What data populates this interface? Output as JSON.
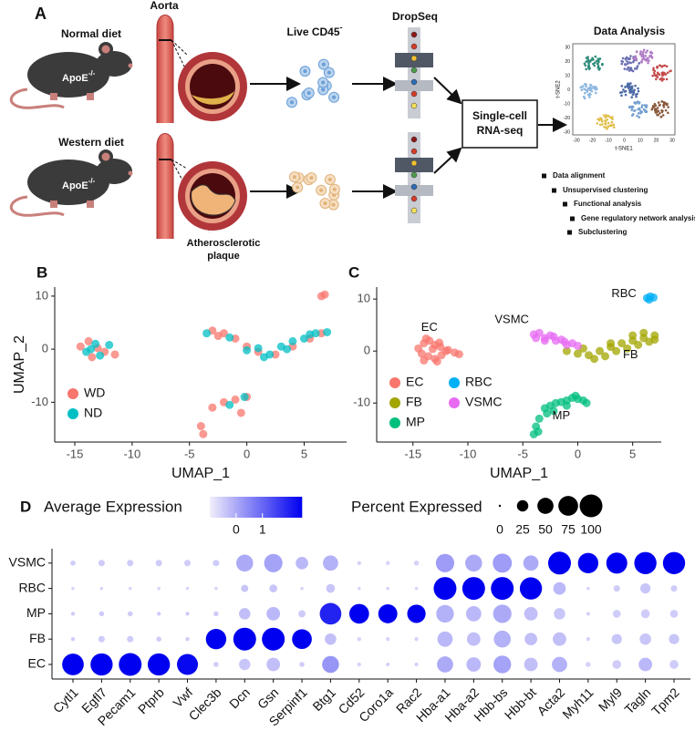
{
  "panel_a": {
    "label": "A",
    "aorta": "Aorta",
    "normal_diet": "Normal diet",
    "western_diet": "Western diet",
    "apoe": "ApoE",
    "apoe_sup": "-/-",
    "cells": "Live CD45",
    "cells_sup": "-",
    "dropseq": "DropSeq",
    "rna_box": [
      "Single-cell",
      "RNA-seq"
    ],
    "plaque": [
      "Atherosclerotic",
      "plaque"
    ],
    "data_analysis": "Data Analysis",
    "tsne_x": "t-SNE1",
    "tsne_y": "t-SNE2",
    "tsne_xticks": [
      "-30",
      "-20",
      "-10",
      "0",
      "10",
      "20",
      "30"
    ],
    "tsne_yticks": [
      "30",
      "20",
      "10",
      "0",
      "-10",
      "-20",
      "-30"
    ],
    "steps": [
      "Data alignment",
      "Unsupervised clustering",
      "Functional analysis",
      "Gene regulatory network analysis",
      "Subclustering"
    ]
  },
  "chart_data": [
    {
      "type": "scatter",
      "panel": "B",
      "xlabel": "UMAP_1",
      "ylabel": "UMAP_2",
      "xlim": [
        -16.75,
        8.7
      ],
      "ylim": [
        -17.5,
        11.7
      ],
      "xticks": [
        -15,
        -10,
        -5,
        0,
        5
      ],
      "yticks": [
        10,
        0,
        -10
      ],
      "legend": "lower left",
      "series": [
        {
          "name": "WD",
          "color": "#f8766d",
          "x": [
            -14.5,
            -13.8,
            -13,
            -12.4,
            -11.5,
            -3,
            -2.5,
            -2,
            -1,
            0,
            1,
            2.5,
            4,
            5.5,
            6.5,
            6.8,
            6.5,
            -3,
            -2,
            -1,
            0,
            -0.5,
            -4,
            -3.8,
            -13.5
          ],
          "y": [
            0.5,
            1.5,
            0.2,
            -0.5,
            -1,
            3.5,
            2.5,
            3,
            2,
            0.5,
            -0.5,
            -1,
            0.5,
            2,
            3,
            10.3,
            10,
            -11,
            -10,
            -9.5,
            -9,
            -12,
            -14.5,
            -16,
            -1.5
          ]
        },
        {
          "name": "ND",
          "color": "#00bfc4",
          "x": [
            -14,
            -13.2,
            -12.8,
            -12,
            -3.5,
            -1.5,
            0,
            1,
            2,
            3,
            4,
            5,
            6,
            7,
            1.5,
            3.5,
            5.5,
            -1.5,
            -0.2,
            -13.6
          ],
          "y": [
            -0.5,
            1,
            -1.2,
            0.8,
            3,
            2.2,
            -0.2,
            0.2,
            -1,
            0.5,
            1.5,
            2,
            3,
            3.2,
            -1.5,
            0,
            2.8,
            -10.5,
            -9,
            0
          ]
        }
      ]
    },
    {
      "type": "scatter",
      "panel": "C",
      "xlabel": "UMAP_1",
      "xlim": [
        -18.3,
        7.6
      ],
      "ylim": [
        -17.5,
        12.3
      ],
      "xticks": [
        -15,
        -10,
        -5,
        0,
        5
      ],
      "yticks": [
        10,
        0,
        -10
      ],
      "legend": "lower left",
      "series": [
        {
          "name": "EC",
          "color": "#f8766d",
          "x": [
            -14.5,
            -14,
            -13.5,
            -13,
            -12.5,
            -12,
            -14.2,
            -13.6,
            -13,
            -12.4,
            -11.8,
            -14,
            -13.2,
            -12.6,
            -11.2,
            -10.8,
            -13.8,
            -12.8
          ],
          "y": [
            0.5,
            1.5,
            2,
            1.2,
            0.8,
            0,
            -0.5,
            -1,
            -1.5,
            -0.8,
            0.2,
            -1.8,
            0.4,
            1.6,
            -0.3,
            -0.6,
            2.4,
            -2
          ]
        },
        {
          "name": "FB",
          "color": "#a3a500",
          "x": [
            -1,
            0,
            1,
            2,
            3,
            4,
            5,
            6,
            7,
            1.5,
            2.5,
            3.5,
            4.5,
            5.5,
            6.5,
            0.5,
            3,
            5,
            6,
            7
          ],
          "y": [
            0,
            -0.5,
            -0.8,
            0,
            0.8,
            1.5,
            2,
            2.5,
            3,
            -1.5,
            -1,
            0,
            0.5,
            1.2,
            1.8,
            0.5,
            1.5,
            3,
            3.5,
            2.2
          ]
        },
        {
          "name": "MP",
          "color": "#00bf7d",
          "x": [
            -3,
            -2.5,
            -2,
            -1.5,
            -1,
            -0.5,
            0,
            0.5,
            -2.8,
            -2.2,
            -1,
            -0.2,
            -3.5,
            -3.8,
            -4,
            -3.6,
            0.8
          ],
          "y": [
            -11,
            -10.5,
            -10,
            -9.8,
            -9.5,
            -9,
            -9.2,
            -9.5,
            -12,
            -11.5,
            -10.5,
            -8.6,
            -13,
            -14.5,
            -16,
            -15.5,
            -10
          ]
        },
        {
          "name": "RBC",
          "color": "#00b0f6",
          "x": [
            6.3,
            6.6,
            6.9,
            6.5
          ],
          "y": [
            10.2,
            10.5,
            10.3,
            9.9
          ]
        },
        {
          "name": "VSMC",
          "color": "#e76bf3",
          "x": [
            -4,
            -3.5,
            -3,
            -2.5,
            -2,
            -1.5,
            -1,
            -0.5,
            -3.8,
            -3,
            -2.2,
            -1.2,
            0
          ],
          "y": [
            3.2,
            3.5,
            2.5,
            3,
            2,
            2.2,
            1.2,
            1.5,
            2.5,
            2,
            2.8,
            1.8,
            1
          ]
        }
      ]
    },
    {
      "type": "dotplot",
      "panel": "D",
      "color_title": "Average Expression",
      "size_title": "Percent Expressed",
      "colorlim": [
        -1,
        2.5
      ],
      "colorticks": [
        0,
        1
      ],
      "low_color": "#f1eefa",
      "high_color": "#0000f0",
      "size_ticks": [
        0,
        25,
        50,
        75,
        100
      ],
      "genes": [
        "Cytl1",
        "Egfl7",
        "Pecam1",
        "Ptprb",
        "Vwf",
        "Clec3b",
        "Dcn",
        "Gsn",
        "Serpinf1",
        "Btg1",
        "Cd52",
        "Coro1a",
        "Rac2",
        "Hba-a1",
        "Hba-a2",
        "Hbb-bs",
        "Hbb-bt",
        "Acta2",
        "Myh11",
        "Myl9",
        "Tagln",
        "Tpm2"
      ],
      "groups": [
        "EC",
        "FB",
        "MP",
        "RBC",
        "VSMC"
      ],
      "expression": [
        [
          2.5,
          2.5,
          2.5,
          2.5,
          2.4,
          -0.5,
          -0.4,
          -0.3,
          -0.5,
          0.3,
          -0.6,
          -0.6,
          -0.6,
          0,
          -0.2,
          0.1,
          -0.3,
          -0.1,
          -0.6,
          -0.5,
          -0.2,
          -0.5
        ],
        [
          -0.5,
          -0.5,
          -0.5,
          -0.5,
          -0.5,
          2.5,
          2.5,
          2.5,
          2.5,
          -0.3,
          -0.6,
          -0.6,
          -0.6,
          -0.2,
          -0.3,
          -0.1,
          -0.3,
          -0.3,
          -0.6,
          -0.4,
          -0.4,
          -0.4
        ],
        [
          -0.5,
          -0.5,
          -0.5,
          -0.5,
          -0.5,
          -0.5,
          -0.3,
          -0.2,
          -0.5,
          2.0,
          2.5,
          2.5,
          2.5,
          -0.1,
          -0.2,
          0,
          -0.3,
          -0.4,
          -0.6,
          -0.5,
          -0.5,
          -0.5
        ],
        [
          -0.6,
          -0.6,
          -0.6,
          -0.6,
          -0.6,
          -0.6,
          -0.4,
          -0.4,
          -0.6,
          -0.4,
          -0.6,
          -0.6,
          -0.6,
          2.5,
          2.5,
          2.5,
          2.5,
          -0.2,
          -0.6,
          -0.5,
          -0.4,
          -0.5
        ],
        [
          -0.5,
          -0.5,
          -0.5,
          -0.5,
          -0.5,
          -0.5,
          0,
          0.1,
          -0.2,
          -0.1,
          -0.6,
          -0.6,
          -0.6,
          0.2,
          0,
          0.2,
          0,
          2.5,
          2.5,
          2.5,
          2.5,
          2.5
        ]
      ],
      "percent": [
        [
          90,
          95,
          100,
          95,
          85,
          5,
          25,
          35,
          5,
          55,
          3,
          3,
          3,
          50,
          40,
          60,
          35,
          45,
          5,
          15,
          35,
          15
        ],
        [
          3,
          8,
          8,
          5,
          3,
          80,
          100,
          100,
          75,
          25,
          3,
          3,
          3,
          45,
          35,
          55,
          30,
          35,
          3,
          20,
          25,
          20
        ],
        [
          3,
          5,
          5,
          3,
          3,
          5,
          25,
          35,
          10,
          90,
          75,
          70,
          65,
          60,
          45,
          65,
          35,
          25,
          3,
          12,
          15,
          12
        ],
        [
          2,
          2,
          2,
          2,
          2,
          2,
          10,
          12,
          2,
          15,
          2,
          2,
          2,
          100,
          100,
          100,
          95,
          30,
          2,
          8,
          20,
          8
        ],
        [
          5,
          8,
          8,
          8,
          8,
          8,
          55,
          65,
          30,
          45,
          3,
          3,
          5,
          65,
          55,
          70,
          45,
          100,
          80,
          85,
          95,
          95
        ]
      ]
    }
  ]
}
